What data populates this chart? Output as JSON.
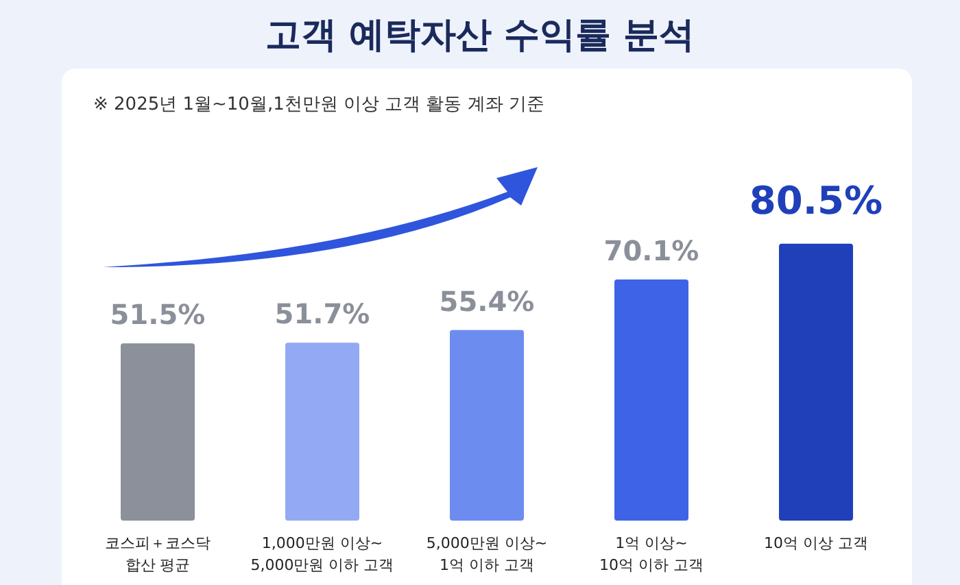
{
  "chart_data": {
    "type": "bar",
    "title": "고객 예탁자산 수익률 분석",
    "subtitle": "※ 2025년 1월~10월,1천만원 이상 고객 활동 계좌 기준",
    "categories": [
      "코스피＋코스닥\n합산 평균",
      "1,000만원 이상~\n5,000만원 이하 고객",
      "5,000만원 이상~\n1억 이하 고객",
      "1억 이상~\n10억 이하 고객",
      "10억 이상 고객"
    ],
    "values": [
      51.5,
      51.7,
      55.4,
      70.1,
      80.5
    ],
    "colors": [
      "#8b909a",
      "#94a9f4",
      "#6d8cf0",
      "#3e63e6",
      "#1f40b9"
    ],
    "value_labels": [
      "51.5%",
      "51.7%",
      "55.4%",
      "70.1%",
      "80.5%"
    ]
  }
}
